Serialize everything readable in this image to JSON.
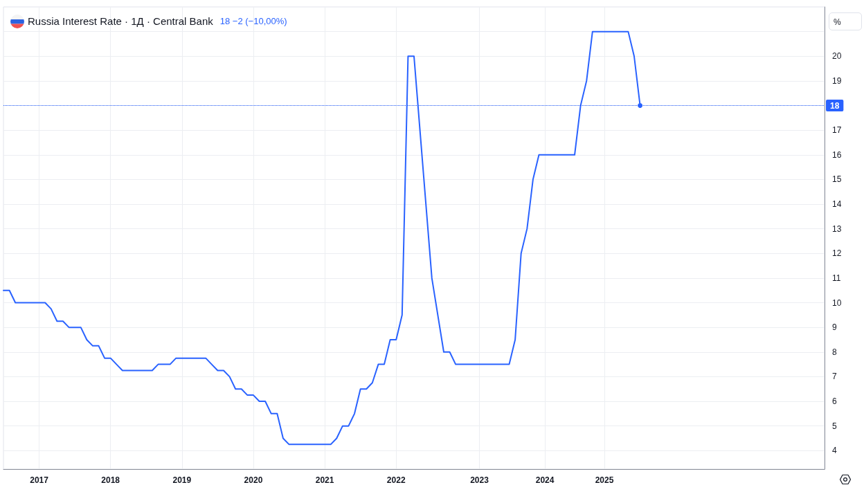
{
  "chart_data": {
    "type": "line",
    "title": "Russia Interest Rate · 1Д · Central Bank",
    "annotations": [
      "18 −2 (−10,00%)"
    ],
    "ylabel": "%",
    "categories": [
      null,
      null,
      null,
      null,
      null,
      null,
      "2017",
      null,
      null,
      null,
      null,
      null,
      null,
      null,
      null,
      null,
      null,
      null,
      "2018",
      null,
      null,
      null,
      null,
      null,
      null,
      null,
      null,
      null,
      null,
      null,
      "2019",
      null,
      null,
      null,
      null,
      null,
      null,
      null,
      null,
      null,
      null,
      null,
      "2020",
      null,
      null,
      null,
      null,
      null,
      null,
      null,
      null,
      null,
      null,
      null,
      "2021",
      null,
      null,
      null,
      null,
      null,
      null,
      null,
      null,
      null,
      null,
      null,
      "2022",
      null,
      null,
      null,
      null,
      null,
      null,
      null,
      null,
      null,
      null,
      null,
      null,
      null,
      "2023",
      null,
      null,
      null,
      null,
      null,
      null,
      null,
      null,
      null,
      null,
      "2024",
      null,
      null,
      null,
      null,
      null,
      null,
      null,
      null,
      null,
      "2025",
      null,
      null,
      null,
      null,
      null,
      null,
      null,
      null,
      null,
      null,
      null,
      null,
      null,
      null,
      null,
      null,
      null,
      null,
      null,
      null,
      null,
      null,
      null,
      null,
      null,
      null,
      null,
      null,
      null,
      null,
      null,
      null,
      null,
      null,
      null,
      null,
      null
    ],
    "series": [
      {
        "color": "#2962ff",
        "values": [
          10.5,
          10.5,
          10,
          10,
          10,
          10,
          10,
          10,
          9.75,
          9.25,
          9.25,
          9,
          9,
          9,
          8.5,
          8.25,
          8.25,
          7.75,
          7.75,
          7.5,
          7.25,
          7.25,
          7.25,
          7.25,
          7.25,
          7.25,
          7.5,
          7.5,
          7.5,
          7.75,
          7.75,
          7.75,
          7.75,
          7.75,
          7.75,
          7.5,
          7.25,
          7.25,
          7,
          6.5,
          6.5,
          6.25,
          6.25,
          6,
          6,
          5.5,
          5.5,
          4.5,
          4.25,
          4.25,
          4.25,
          4.25,
          4.25,
          4.25,
          4.25,
          4.25,
          4.5,
          5,
          5,
          5.5,
          6.5,
          6.5,
          6.75,
          7.5,
          7.5,
          8.5,
          8.5,
          9.5,
          20,
          20,
          17,
          14,
          11,
          9.5,
          8,
          8,
          7.5,
          7.5,
          7.5,
          7.5,
          7.5,
          7.5,
          7.5,
          7.5,
          7.5,
          7.5,
          8.5,
          12,
          13,
          15,
          16,
          16,
          16,
          16,
          16,
          16,
          16,
          18,
          19,
          21,
          21,
          21,
          21,
          21,
          21,
          21,
          20,
          18,
          null,
          null,
          null,
          null,
          null,
          null,
          null,
          null,
          null,
          null,
          null,
          null,
          null,
          null,
          null,
          null,
          null,
          null,
          null,
          null,
          null,
          null,
          null,
          null,
          null,
          null,
          null,
          null,
          null,
          null,
          null
        ]
      }
    ],
    "ylim": [
      3.25,
      22
    ],
    "yticks": [
      4,
      5,
      6,
      7,
      8,
      9,
      10,
      11,
      12,
      13,
      14,
      15,
      16,
      17,
      18,
      19,
      20,
      {
        "value": 21,
        "label": null
      }
    ],
    "grid": true,
    "marker": "none",
    "ref_lines": [
      {
        "axis": "y",
        "value": 18,
        "label": "18",
        "color": "#2962ff",
        "line_style": "dotted"
      }
    ]
  }
}
